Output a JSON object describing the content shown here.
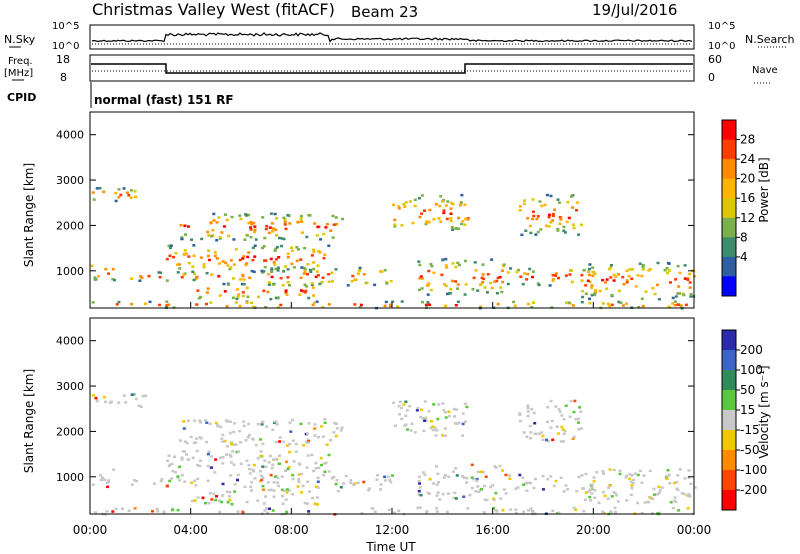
{
  "header": {
    "station": "Christmas Valley West (fitACF)",
    "beam": "Beam 23",
    "date": "19/Jul/2016"
  },
  "strip": {
    "nsky_label": "N.Sky",
    "nsearch_label": "N.Search",
    "freq_label_line1": "Freq.",
    "freq_label_line2": "[MHz]",
    "nave_label": "Nave",
    "cpid_label": "CPID",
    "cpid_value": "normal (fast) 151 RF",
    "noise_ticks": [
      "10^5",
      "10^0"
    ],
    "freq_ticks": [
      "18",
      "8"
    ],
    "nave_ticks": [
      "60",
      "0"
    ]
  },
  "chart_data": [
    {
      "type": "heatmap",
      "name": "power",
      "xlabel": "",
      "ylabel": "Slant Range [km]",
      "xlim": [
        0,
        24
      ],
      "ylim": [
        180,
        4500
      ],
      "yticks": [
        "1000",
        "2000",
        "3000",
        "4000"
      ],
      "colorbar": {
        "label": "Power [dB]",
        "ticks": [
          "28",
          "24",
          "20",
          "16",
          "12",
          "8",
          "4"
        ],
        "colors": [
          "#ff0000",
          "#ff3c00",
          "#ff8c00",
          "#ffb400",
          "#dcc800",
          "#7ab14a",
          "#3e8c6c",
          "#2f5fa0",
          "#0000ff"
        ]
      }
    },
    {
      "type": "heatmap",
      "name": "velocity",
      "xlabel": "Time UT",
      "ylabel": "Slant Range [km]",
      "xlim": [
        0,
        24
      ],
      "ylim": [
        180,
        4500
      ],
      "xticks": [
        "00:00",
        "04:00",
        "08:00",
        "12:00",
        "16:00",
        "20:00",
        "00:00"
      ],
      "yticks": [
        "1000",
        "2000",
        "3000",
        "4000"
      ],
      "colorbar": {
        "label": "Velocity [m s⁻¹]",
        "ticks": [
          "200",
          "100",
          "50",
          "15",
          "-15",
          "-50",
          "-100",
          "-200"
        ],
        "colors": [
          "#2a2aaa",
          "#3c64c8",
          "#2f8c5a",
          "#5ac83c",
          "#c8c8c8",
          "#f0c800",
          "#ff8c00",
          "#ff4600",
          "#ff0000"
        ]
      }
    }
  ]
}
